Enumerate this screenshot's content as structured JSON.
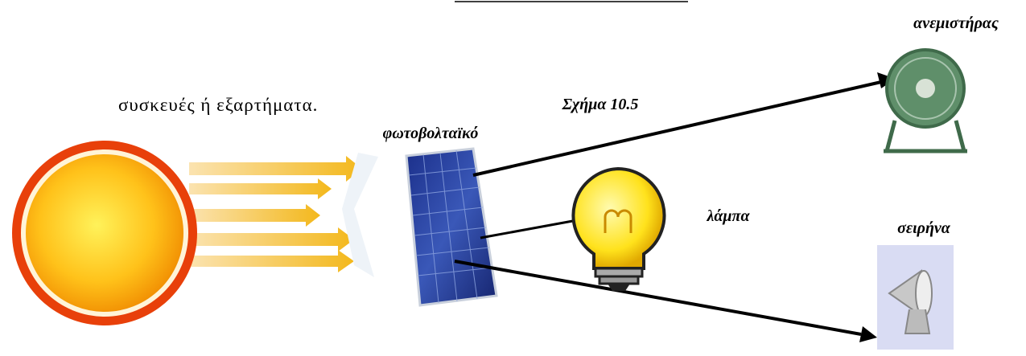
{
  "text": {
    "line": "συσκευές ή εξαρτήματα."
  },
  "figure": {
    "caption": "Σχήμα 10.5",
    "nodes": [
      {
        "label": "φωτοβολταϊκό"
      },
      {
        "label": "ανεμιστήρας"
      },
      {
        "label": "λάμπα"
      },
      {
        "label": "σειρήνα"
      }
    ]
  }
}
